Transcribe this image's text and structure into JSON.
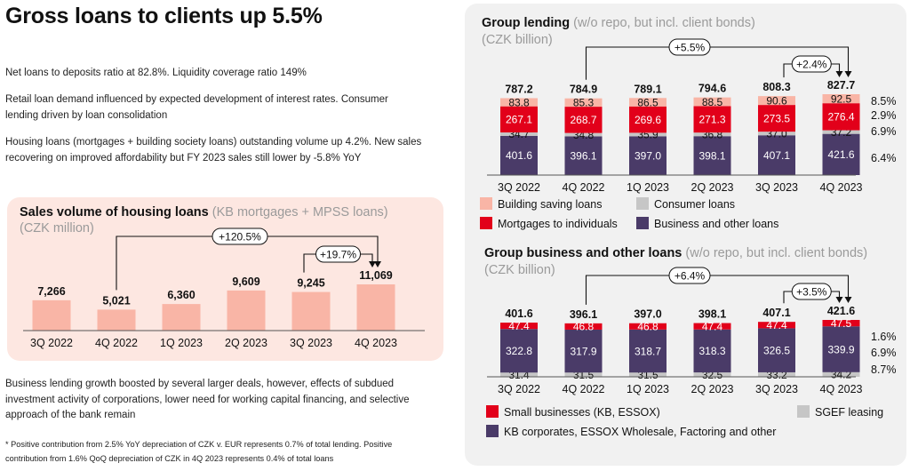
{
  "page": {
    "title": "Gross loans to clients up 5.5%",
    "paragraphs": [
      "Net loans to deposits ratio at 82.8%. Liquidity coverage ratio 149%",
      "Retail loan demand influenced by expected development of interest rates. Consumer lending driven by loan consolidation",
      "Housing loans (mortgages + building society loans) outstanding volume up 4.2%. New sales recovering on improved affordability but FY 2023 sales still  lower by -5.8% YoY",
      "Business lending growth boosted by several larger deals, however, effects of subdued investment  activity of corporations, lower need for working  capital financing, and selective approach of the bank remain"
    ],
    "footnote": "* Positive contribution from 2.5% YoY depreciation of CZK v. EUR represents 0.7% of total lending. Positive contribution from 1.6% QoQ depreciation of CZK in 4Q 2023 represents 0.4% of total loans"
  },
  "colors": {
    "salmon_bar": "#f9b5a6",
    "red": "#e2001a",
    "grey": "#c6c6c6",
    "purple": "#4a3b68",
    "panel_left": "#fde7e1",
    "panel_right": "#f1f1f1"
  },
  "chart_data": [
    {
      "id": "housing",
      "type": "bar",
      "title": "Sales volume of housing loans",
      "subtitle": "(KB mortgages + MPSS loans)",
      "unit": "(CZK million)",
      "categories": [
        "3Q 2022",
        "4Q 2022",
        "1Q 2023",
        "2Q 2023",
        "3Q 2023",
        "4Q 2023"
      ],
      "values": [
        7266,
        5021,
        6360,
        9609,
        9245,
        11069
      ],
      "value_labels": [
        "7,266",
        "5,021",
        "6,360",
        "9,609",
        "9,245",
        "11,069"
      ],
      "annotations": [
        {
          "label": "+120.5%",
          "from": "4Q 2022",
          "to": "4Q 2023"
        },
        {
          "label": "+19.7%",
          "from": "3Q 2023",
          "to": "4Q 2023"
        }
      ]
    },
    {
      "id": "group_lending",
      "type": "bar",
      "stacked": true,
      "title": "Group lending",
      "subtitle": "(w/o repo, but incl. client bonds)",
      "unit": "(CZK billion)",
      "categories": [
        "3Q 2022",
        "4Q 2022",
        "1Q 2023",
        "2Q 2023",
        "3Q 2023",
        "4Q 2023"
      ],
      "totals": [
        787.2,
        784.9,
        789.1,
        794.6,
        808.3,
        827.7
      ],
      "series": [
        {
          "name": "Business and other loans",
          "values": [
            401.6,
            396.1,
            397.0,
            398.1,
            407.1,
            421.6
          ],
          "growth": "6.4%"
        },
        {
          "name": "Consumer loans",
          "values": [
            34.7,
            34.8,
            35.9,
            36.8,
            37.0,
            37.2
          ],
          "growth": "6.9%"
        },
        {
          "name": "Mortgages to individuals",
          "values": [
            267.1,
            268.7,
            269.6,
            271.3,
            273.5,
            276.4
          ],
          "growth": "2.9%"
        },
        {
          "name": "Building saving loans",
          "values": [
            83.8,
            85.3,
            86.5,
            88.5,
            90.6,
            92.5
          ],
          "growth": "8.5%"
        }
      ],
      "annotations": [
        {
          "label": "+5.5%",
          "from": "4Q 2022",
          "to": "4Q 2023"
        },
        {
          "label": "+2.4%",
          "from": "3Q 2023",
          "to": "4Q 2023"
        }
      ],
      "legend": [
        "Building saving loans",
        "Consumer loans",
        "Mortgages to individuals",
        "Business and other loans"
      ]
    },
    {
      "id": "business",
      "type": "bar",
      "stacked": true,
      "title": "Group business and other loans",
      "subtitle": "(w/o repo, but incl. client bonds)",
      "unit": "(CZK billion)",
      "categories": [
        "3Q 2022",
        "4Q 2022",
        "1Q 2023",
        "2Q 2023",
        "3Q 2023",
        "4Q 2023"
      ],
      "totals": [
        401.6,
        396.1,
        397.0,
        398.1,
        407.1,
        421.6
      ],
      "series": [
        {
          "name": "SGEF leasing",
          "values": [
            31.4,
            31.5,
            31.5,
            32.5,
            33.2,
            34.2
          ],
          "growth": "8.7%"
        },
        {
          "name": "KB corporates, ESSOX Wholesale, Factoring and other",
          "values": [
            322.8,
            317.9,
            318.7,
            318.3,
            326.5,
            339.9
          ],
          "growth": "6.9%"
        },
        {
          "name": "Small businesses (KB, ESSOX)",
          "values": [
            47.4,
            46.8,
            46.8,
            47.4,
            47.4,
            47.5
          ],
          "growth": "1.6%"
        }
      ],
      "annotations": [
        {
          "label": "+6.4%",
          "from": "4Q 2022",
          "to": "4Q 2023"
        },
        {
          "label": "+3.5%",
          "from": "3Q 2023",
          "to": "4Q 2023"
        }
      ],
      "legend": [
        "Small businesses (KB, ESSOX)",
        "SGEF leasing",
        "KB corporates, ESSOX Wholesale, Factoring and other"
      ]
    }
  ]
}
